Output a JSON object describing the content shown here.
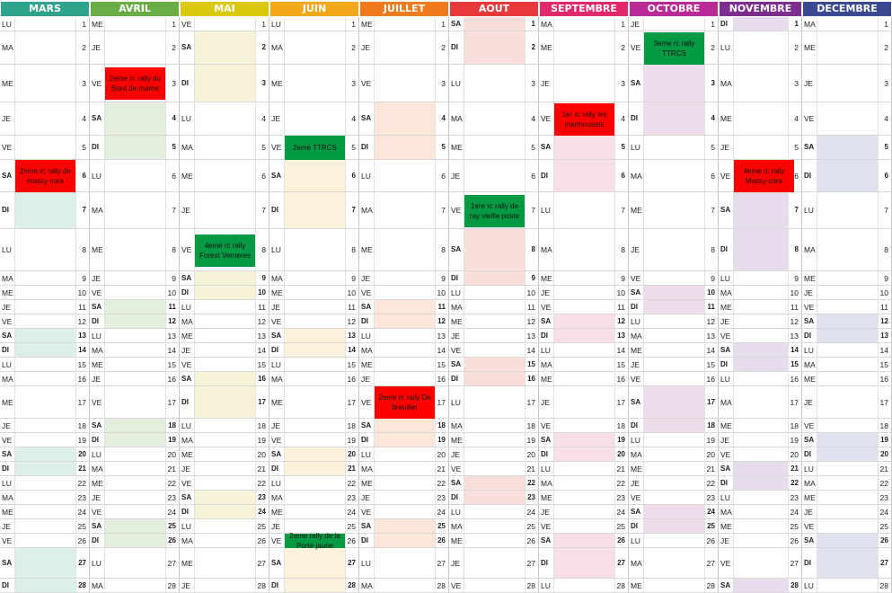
{
  "months": [
    {
      "name": "MARS",
      "color": "#2fa38c",
      "tint": "#dcefeb",
      "start": 0
    },
    {
      "name": "AVRIL",
      "color": "#6aac45",
      "tint": "#e4efde",
      "start": 2
    },
    {
      "name": "MAI",
      "color": "#d9c80b",
      "tint": "#f6f3d9",
      "start": 4
    },
    {
      "name": "JUIN",
      "color": "#f4a718",
      "tint": "#fcf1da",
      "start": 0
    },
    {
      "name": "JUILLET",
      "color": "#f07a1c",
      "tint": "#fbe6d9",
      "start": 2
    },
    {
      "name": "AOUT",
      "color": "#e83a3c",
      "tint": "#f9dedc",
      "start": 5
    },
    {
      "name": "SEPTEMBRE",
      "color": "#e4286e",
      "tint": "#f8dee6",
      "start": 1
    },
    {
      "name": "OCTOBRE",
      "color": "#ba2996",
      "tint": "#efdcea",
      "start": 3
    },
    {
      "name": "NOVEMBRE",
      "color": "#7c2f8f",
      "tint": "#e7dcec",
      "start": 6
    },
    {
      "name": "DECEMBRE",
      "color": "#3a4990",
      "tint": "#dfe1ee",
      "start": 1
    }
  ],
  "weekdays": [
    "LU",
    "MA",
    "ME",
    "JE",
    "VE",
    "SA",
    "DI"
  ],
  "events": [
    {
      "month": 0,
      "day": 6,
      "label": "2eme rc rally de massy cora",
      "color": "#fe0000"
    },
    {
      "month": 1,
      "day": 3,
      "label": "2eme rc rally du Bord de marne",
      "color": "#fe0000"
    },
    {
      "month": 2,
      "day": 8,
      "label": "4eme rc rally Forest Verrieres",
      "color": "#039a43"
    },
    {
      "month": 3,
      "day": 5,
      "label": "2eme TTRCS",
      "color": "#039a43"
    },
    {
      "month": 3,
      "day": 26,
      "label": "2eme rally de la Porte jaune",
      "color": "#039a43"
    },
    {
      "month": 4,
      "day": 17,
      "label": "2eme rc rally De breuillet",
      "color": "#fe0000"
    },
    {
      "month": 5,
      "day": 7,
      "label": "1ere rc rally de ray vieille poste",
      "color": "#039a43"
    },
    {
      "month": 6,
      "day": 4,
      "label": "1er rc rally les marmousets",
      "color": "#fe0000"
    },
    {
      "month": 7,
      "day": 2,
      "label": "3eme rc rally TTRCS",
      "color": "#039a43"
    },
    {
      "month": 8,
      "day": 6,
      "label": "4eme rc rally Massy cora",
      "color": "#fe0000"
    }
  ]
}
